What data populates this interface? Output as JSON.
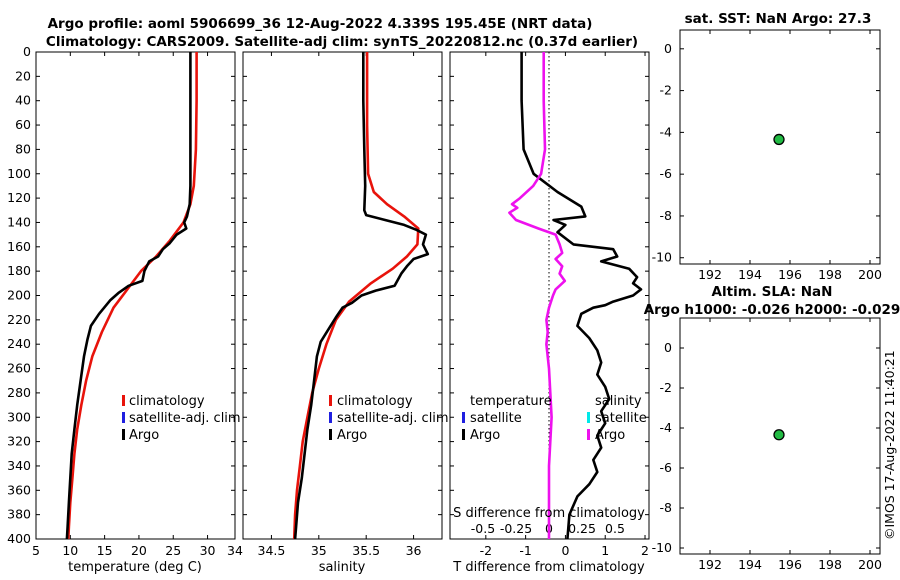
{
  "figure": {
    "title_line1": "Argo profile: aoml 5906699_36 12-Aug-2022 4.339S 195.45E (NRT data)",
    "title_line2": "Climatology: CARS2009. Satellite-adj clim: synTS_20220812.nc (0.37d earlier)",
    "side_stamp": "©IMOS 17-Aug-2022 11:40:21"
  },
  "colors": {
    "climatology": "#e8130b",
    "satellite": "#1f1fe0",
    "argo": "#000000",
    "salinity_diff": "#ee11ee",
    "satellite_salinity": "#00e8e8",
    "marker": "#22bb44"
  },
  "legend": {
    "climatology": "climatology",
    "satellite_adj": "satellite-adj. clim",
    "argo": "Argo",
    "temperature_head": "temperature",
    "salinity_head": "salinity",
    "satellite": "satellite"
  },
  "chart_data": [
    {
      "type": "line",
      "name": "temperature-profile",
      "xlabel": "temperature (deg C)",
      "ylabel": "",
      "xlim": [
        5,
        34
      ],
      "ylim": [
        400,
        0
      ],
      "xticks": [
        5,
        10,
        15,
        20,
        25,
        30,
        34
      ],
      "yticks": [
        0,
        20,
        40,
        60,
        80,
        100,
        120,
        140,
        160,
        180,
        200,
        220,
        240,
        260,
        280,
        300,
        320,
        340,
        360,
        380,
        400
      ],
      "series": [
        {
          "name": "climatology",
          "points": [
            [
              28.4,
              0
            ],
            [
              28.4,
              40
            ],
            [
              28.3,
              80
            ],
            [
              28.0,
              110
            ],
            [
              27.5,
              125
            ],
            [
              26.5,
              140
            ],
            [
              24.5,
              155
            ],
            [
              22.5,
              168
            ],
            [
              20.3,
              180
            ],
            [
              18.3,
              195
            ],
            [
              16.3,
              210
            ],
            [
              14.6,
              230
            ],
            [
              13.2,
              250
            ],
            [
              12.3,
              270
            ],
            [
              11.6,
              290
            ],
            [
              11.0,
              310
            ],
            [
              10.6,
              330
            ],
            [
              10.3,
              350
            ],
            [
              10.0,
              370
            ],
            [
              9.8,
              390
            ],
            [
              9.7,
              400
            ]
          ]
        },
        {
          "name": "argo",
          "points": [
            [
              27.5,
              0
            ],
            [
              27.5,
              40
            ],
            [
              27.5,
              80
            ],
            [
              27.5,
              110
            ],
            [
              27.4,
              125
            ],
            [
              27.0,
              135
            ],
            [
              26.6,
              140
            ],
            [
              26.9,
              145
            ],
            [
              25.5,
              150
            ],
            [
              24.5,
              157
            ],
            [
              23.5,
              162
            ],
            [
              22.8,
              168
            ],
            [
              21.5,
              172
            ],
            [
              20.8,
              180
            ],
            [
              20.5,
              188
            ],
            [
              18.5,
              192
            ],
            [
              17.0,
              198
            ],
            [
              15.8,
              204
            ],
            [
              14.2,
              215
            ],
            [
              13.0,
              225
            ],
            [
              12.5,
              236
            ],
            [
              12.0,
              250
            ],
            [
              11.5,
              270
            ],
            [
              11.0,
              290
            ],
            [
              10.6,
              310
            ],
            [
              10.2,
              330
            ],
            [
              10.0,
              350
            ],
            [
              9.8,
              370
            ],
            [
              9.6,
              390
            ],
            [
              9.5,
              400
            ]
          ]
        }
      ],
      "legend": [
        "climatology",
        "satellite-adj. clim",
        "Argo"
      ]
    },
    {
      "type": "line",
      "name": "salinity-profile",
      "xlabel": "salinity",
      "ylabel": "",
      "xlim": [
        34.2,
        36.3
      ],
      "ylim": [
        400,
        0
      ],
      "xticks": [
        34.5,
        35,
        35.5,
        36
      ],
      "xticklabels": [
        "34.5",
        "35",
        "35.5",
        "36"
      ],
      "series": [
        {
          "name": "climatology",
          "points": [
            [
              35.51,
              0
            ],
            [
              35.51,
              60
            ],
            [
              35.52,
              100
            ],
            [
              35.58,
              115
            ],
            [
              35.72,
              125
            ],
            [
              35.9,
              135
            ],
            [
              36.05,
              145
            ],
            [
              36.04,
              158
            ],
            [
              35.93,
              168
            ],
            [
              35.78,
              178
            ],
            [
              35.55,
              190
            ],
            [
              35.32,
              205
            ],
            [
              35.18,
              220
            ],
            [
              35.08,
              240
            ],
            [
              35.0,
              260
            ],
            [
              34.93,
              280
            ],
            [
              34.88,
              300
            ],
            [
              34.83,
              320
            ],
            [
              34.8,
              340
            ],
            [
              34.77,
              360
            ],
            [
              34.75,
              380
            ],
            [
              34.74,
              400
            ]
          ]
        },
        {
          "name": "argo",
          "points": [
            [
              35.47,
              0
            ],
            [
              35.47,
              40
            ],
            [
              35.48,
              80
            ],
            [
              35.49,
              110
            ],
            [
              35.48,
              130
            ],
            [
              35.5,
              134
            ],
            [
              35.7,
              138
            ],
            [
              35.9,
              142
            ],
            [
              36.03,
              146
            ],
            [
              36.13,
              150
            ],
            [
              36.1,
              158
            ],
            [
              36.15,
              166
            ],
            [
              36.0,
              170
            ],
            [
              35.93,
              176
            ],
            [
              35.87,
              182
            ],
            [
              35.8,
              192
            ],
            [
              35.6,
              196
            ],
            [
              35.45,
              200
            ],
            [
              35.35,
              206
            ],
            [
              35.25,
              210
            ],
            [
              35.18,
              218
            ],
            [
              35.1,
              228
            ],
            [
              35.02,
              238
            ],
            [
              34.98,
              250
            ],
            [
              34.95,
              270
            ],
            [
              34.92,
              290
            ],
            [
              34.88,
              310
            ],
            [
              34.85,
              330
            ],
            [
              34.82,
              350
            ],
            [
              34.78,
              370
            ],
            [
              34.76,
              390
            ],
            [
              34.75,
              400
            ]
          ]
        }
      ],
      "legend": [
        "climatology",
        "satellite-adj. clim",
        "Argo"
      ]
    },
    {
      "type": "line",
      "name": "difference-profile",
      "xlabel": "T difference from climatology",
      "x2label": "S difference from climatology",
      "xlim": [
        -2.9,
        2.1
      ],
      "ylim": [
        400,
        0
      ],
      "xticks": [
        -2,
        -1,
        0,
        1,
        2
      ],
      "xticklabels": [
        "-2",
        "-1",
        "0",
        "1",
        "2"
      ],
      "x2ticks": [
        -0.5,
        -0.25,
        0,
        0.25,
        0.5
      ],
      "x2ticklabels": [
        "-0.5",
        "-0.25",
        "0",
        "0.25",
        "0.5"
      ],
      "series": [
        {
          "name": "temperature (Argo)",
          "points": [
            [
              -1.1,
              0
            ],
            [
              -1.1,
              40
            ],
            [
              -1.05,
              80
            ],
            [
              -0.8,
              100
            ],
            [
              -0.2,
              115
            ],
            [
              0.4,
              127
            ],
            [
              0.5,
              135
            ],
            [
              -0.3,
              138
            ],
            [
              0,
              142
            ],
            [
              -0.2,
              148
            ],
            [
              0.2,
              158
            ],
            [
              1.2,
              162
            ],
            [
              1.3,
              168
            ],
            [
              0.9,
              172
            ],
            [
              1.6,
              178
            ],
            [
              1.8,
              185
            ],
            [
              1.7,
              190
            ],
            [
              1.9,
              195
            ],
            [
              1.7,
              200
            ],
            [
              1.2,
              205
            ],
            [
              1.0,
              208
            ],
            [
              0.7,
              210
            ],
            [
              0.4,
              215
            ],
            [
              0.3,
              225
            ],
            [
              0.6,
              235
            ],
            [
              0.8,
              245
            ],
            [
              0.9,
              255
            ],
            [
              0.8,
              265
            ],
            [
              1.0,
              275
            ],
            [
              1.1,
              285
            ],
            [
              0.9,
              295
            ],
            [
              1.0,
              305
            ],
            [
              0.8,
              315
            ],
            [
              0.9,
              325
            ],
            [
              0.7,
              335
            ],
            [
              0.8,
              345
            ],
            [
              0.6,
              355
            ],
            [
              0.3,
              365
            ],
            [
              0.1,
              380
            ],
            [
              0.05,
              400
            ]
          ]
        },
        {
          "name": "salinity (Argo)",
          "points": [
            [
              -0.04,
              0
            ],
            [
              -0.04,
              40
            ],
            [
              -0.03,
              80
            ],
            [
              -0.06,
              100
            ],
            [
              -0.12,
              110
            ],
            [
              -0.22,
              120
            ],
            [
              -0.28,
              125
            ],
            [
              -0.24,
              128
            ],
            [
              -0.3,
              132
            ],
            [
              -0.25,
              138
            ],
            [
              -0.08,
              145
            ],
            [
              0.05,
              150
            ],
            [
              0.08,
              158
            ],
            [
              0.1,
              165
            ],
            [
              0.05,
              170
            ],
            [
              0.1,
              176
            ],
            [
              0.08,
              182
            ],
            [
              0.12,
              188
            ],
            [
              0.05,
              195
            ],
            [
              0.03,
              200
            ],
            [
              0.0,
              210
            ],
            [
              -0.02,
              220
            ],
            [
              -0.01,
              230
            ],
            [
              -0.02,
              240
            ],
            [
              0.0,
              260
            ],
            [
              0.01,
              280
            ],
            [
              0.02,
              300
            ],
            [
              0.01,
              320
            ],
            [
              0.0,
              340
            ],
            [
              0.0,
              360
            ],
            [
              0.0,
              380
            ],
            [
              0.0,
              400
            ]
          ]
        }
      ],
      "legend": [
        "temperature",
        "satellite",
        "Argo",
        "salinity",
        "satellite",
        "Argo"
      ]
    },
    {
      "type": "scatter",
      "name": "sst-position",
      "title": "sat. SST: NaN Argo: 27.3",
      "xlim": [
        190.5,
        200.5
      ],
      "ylim": [
        -10.3,
        0.9
      ],
      "xticks": [
        192,
        194,
        196,
        198,
        200
      ],
      "yticks": [
        0,
        -2,
        -4,
        -6,
        -8,
        -10
      ],
      "points": [
        [
          195.45,
          -4.339
        ]
      ]
    },
    {
      "type": "scatter",
      "name": "sla-position",
      "title_line1": "Altim. SLA: NaN",
      "title_line2": "Argo h1000: -0.026 h2000: -0.029",
      "xlim": [
        190.5,
        200.5
      ],
      "ylim": [
        -10.3,
        1.5
      ],
      "xticks": [
        192,
        194,
        196,
        198,
        200
      ],
      "yticks": [
        0,
        -2,
        -4,
        -6,
        -8,
        -10
      ],
      "points": [
        [
          195.45,
          -4.339
        ]
      ]
    }
  ]
}
